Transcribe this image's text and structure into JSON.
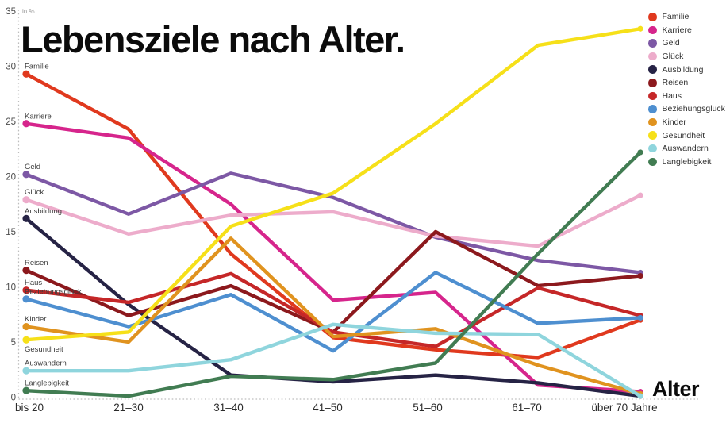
{
  "header": {
    "title": "Lebensziele nach Alter."
  },
  "chart_data": {
    "type": "line",
    "title": "Lebensziele nach Alter.",
    "ylabel": "in %",
    "xlabel": "Alter",
    "ylim": [
      0,
      35
    ],
    "yticks": [
      0,
      5,
      10,
      15,
      20,
      25,
      30,
      35
    ],
    "grid": false,
    "legend_position": "top-right",
    "categories": [
      "bis 20",
      "21–30",
      "31–40",
      "41–50",
      "51–60",
      "61–70",
      "über 70 Jahre"
    ],
    "series": [
      {
        "name": "Familie",
        "color": "#e0391e",
        "values": [
          29.3,
          24.3,
          13.0,
          5.4,
          4.3,
          3.6,
          7.0
        ]
      },
      {
        "name": "Karriere",
        "color": "#d6258c",
        "values": [
          24.8,
          23.5,
          17.5,
          8.8,
          9.5,
          1.1,
          0.5
        ]
      },
      {
        "name": "Geld",
        "color": "#7d58a5",
        "values": [
          20.2,
          16.6,
          20.3,
          18.1,
          14.5,
          12.4,
          11.3
        ]
      },
      {
        "name": "Glück",
        "color": "#edaccb",
        "values": [
          17.9,
          14.8,
          16.5,
          16.8,
          14.6,
          13.7,
          18.3
        ]
      },
      {
        "name": "Ausbildung",
        "color": "#262345",
        "values": [
          16.2,
          8.4,
          2.0,
          1.4,
          2.0,
          1.3,
          0.1
        ]
      },
      {
        "name": "Reisen",
        "color": "#8c191d",
        "values": [
          11.5,
          7.4,
          10.1,
          5.9,
          15.0,
          10.1,
          11.0
        ]
      },
      {
        "name": "Haus",
        "color": "#c52728",
        "values": [
          9.7,
          8.6,
          11.2,
          5.9,
          4.6,
          9.9,
          7.4
        ]
      },
      {
        "name": "Beziehungsglück",
        "color": "#4e8fd0",
        "values": [
          8.9,
          6.4,
          9.3,
          4.2,
          11.3,
          6.7,
          7.2
        ]
      },
      {
        "name": "Kinder",
        "color": "#e0931f",
        "values": [
          6.4,
          5.0,
          14.4,
          5.5,
          6.2,
          2.9,
          0.3
        ]
      },
      {
        "name": "Gesundheit",
        "color": "#f6e019",
        "values": [
          5.2,
          5.9,
          15.5,
          18.5,
          24.8,
          31.9,
          33.4
        ],
        "label_position": "below"
      },
      {
        "name": "Auswandern",
        "color": "#8fd5dd",
        "values": [
          2.4,
          2.4,
          3.4,
          6.6,
          5.8,
          5.7,
          0.1
        ]
      },
      {
        "name": "Langlebigkeit",
        "color": "#417c52",
        "values": [
          0.6,
          0.1,
          1.9,
          1.6,
          3.1,
          13.0,
          22.2
        ]
      }
    ]
  }
}
